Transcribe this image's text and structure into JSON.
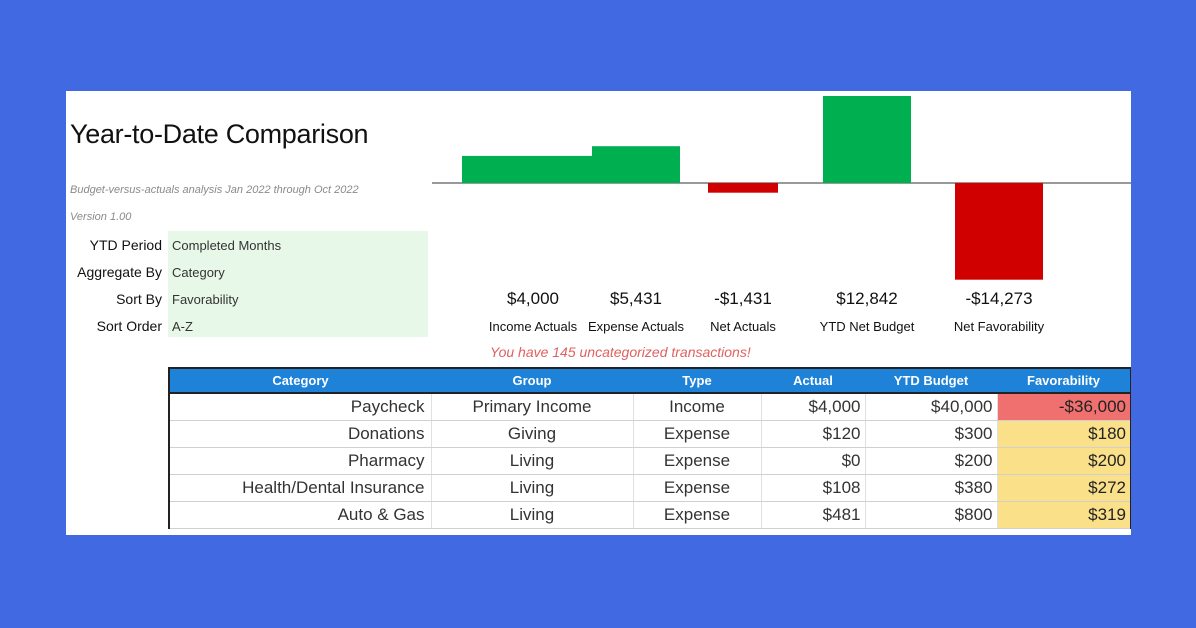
{
  "report": {
    "title": "Year-to-Date Comparison",
    "subtitle": "Budget-versus-actuals analysis Jan 2022 through Oct 2022",
    "version": "Version 1.00"
  },
  "settings": [
    {
      "label": "YTD Period",
      "value": "Completed Months"
    },
    {
      "label": "Aggregate By",
      "value": "Category"
    },
    {
      "label": "Sort By",
      "value": "Favorability"
    },
    {
      "label": "Sort Order",
      "value": "A-Z"
    }
  ],
  "warning": "You have 145 uncategorized transactions!",
  "colors": {
    "positive": "#00b050",
    "negative": "#d00000",
    "header": "#1e82d8",
    "fav_negative": "#f07070",
    "fav_positive": "#fbe08a",
    "background": "#4169e1"
  },
  "chart_data": {
    "type": "bar",
    "categories": [
      "Income Actuals",
      "Expense Actuals",
      "Net Actuals",
      "YTD Net Budget",
      "Net Favorability"
    ],
    "values": [
      4000,
      5431,
      -1431,
      12842,
      -14273
    ],
    "value_labels": [
      "$4,000",
      "$5,431",
      "-$1,431",
      "$12,842",
      "-$14,273"
    ],
    "title": "",
    "xlabel": "",
    "ylabel": "",
    "ylim": [
      -14273,
      12842
    ],
    "grid": false
  },
  "table": {
    "columns": [
      "Category",
      "Group",
      "Type",
      "Actual",
      "YTD Budget",
      "Favorability"
    ],
    "rows": [
      {
        "category": "Paycheck",
        "group": "Primary Income",
        "type": "Income",
        "actual": "$4,000",
        "budget": "$40,000",
        "favorability": "-$36,000",
        "fav_sign": "negative"
      },
      {
        "category": "Donations",
        "group": "Giving",
        "type": "Expense",
        "actual": "$120",
        "budget": "$300",
        "favorability": "$180",
        "fav_sign": "positive"
      },
      {
        "category": "Pharmacy",
        "group": "Living",
        "type": "Expense",
        "actual": "$0",
        "budget": "$200",
        "favorability": "$200",
        "fav_sign": "positive"
      },
      {
        "category": "Health/Dental Insurance",
        "group": "Living",
        "type": "Expense",
        "actual": "$108",
        "budget": "$380",
        "favorability": "$272",
        "fav_sign": "positive"
      },
      {
        "category": "Auto & Gas",
        "group": "Living",
        "type": "Expense",
        "actual": "$481",
        "budget": "$800",
        "favorability": "$319",
        "fav_sign": "positive"
      }
    ]
  }
}
